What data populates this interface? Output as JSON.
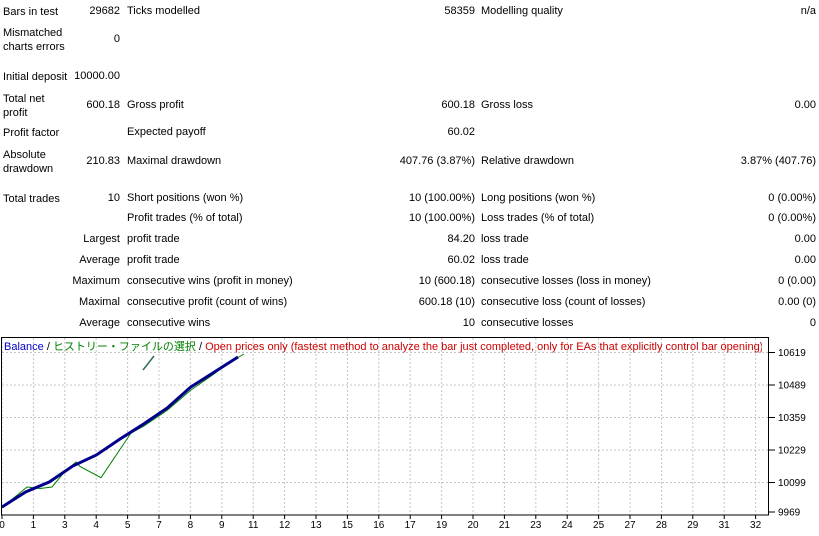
{
  "stats": {
    "rows": [
      {
        "c1": "Bars in test",
        "v1": "29682",
        "c2": "Ticks modelled",
        "v2": "58359",
        "c3": "Modelling quality",
        "v3": "n/a"
      },
      {
        "c1": "Mismatched charts errors",
        "v1": "0",
        "c2": "",
        "v2": "",
        "c3": "",
        "v3": ""
      },
      {
        "c1": "Initial deposit",
        "v1": "10000.00",
        "c2": "",
        "v2": "",
        "c3": "",
        "v3": ""
      },
      {
        "c1": "Total net profit",
        "v1": "600.18",
        "c2": "Gross profit",
        "v2": "600.18",
        "c3": "Gross loss",
        "v3": "0.00"
      },
      {
        "c1": "Profit factor",
        "v1": "",
        "c2": "Expected payoff",
        "v2": "60.02",
        "c3": "",
        "v3": ""
      },
      {
        "c1": "Absolute drawdown",
        "v1": "210.83",
        "c2": "Maximal drawdown",
        "v2": "407.76 (3.87%)",
        "c3": "Relative drawdown",
        "v3": "3.87% (407.76)"
      },
      {
        "c1": "Total trades",
        "v1": "10",
        "c2": "Short positions (won %)",
        "v2": "10 (100.00%)",
        "c3": "Long positions (won %)",
        "v3": "0 (0.00%)"
      },
      {
        "c1": "",
        "v1": "",
        "c2": "Profit trades (% of total)",
        "v2": "10 (100.00%)",
        "c3": "Loss trades (% of total)",
        "v3": "0 (0.00%)"
      },
      {
        "c1": "",
        "v1": "Largest",
        "c2": "profit trade",
        "v2": "84.20",
        "c3": "loss trade",
        "v3": "0.00"
      },
      {
        "c1": "",
        "v1": "Average",
        "c2": "profit trade",
        "v2": "60.02",
        "c3": "loss trade",
        "v3": "0.00"
      },
      {
        "c1": "",
        "v1": "Maximum",
        "c2": "consecutive wins (profit in money)",
        "v2": "10 (600.18)",
        "c3": "consecutive losses (loss in money)",
        "v3": "0 (0.00)"
      },
      {
        "c1": "",
        "v1": "Maximal",
        "c2": "consecutive profit (count of wins)",
        "v2": "600.18 (10)",
        "c3": "consecutive loss (count of losses)",
        "v3": "0.00 (0)"
      },
      {
        "c1": "",
        "v1": "Average",
        "c2": "consecutive wins",
        "v2": "10",
        "c3": "consecutive losses",
        "v3": "0"
      }
    ]
  },
  "chart": {
    "legend": {
      "balance": "Balance",
      "separator": " / ",
      "history": "ヒストリー・ファイルの選択",
      "note": "Open prices only (fastest method to analyze the bar just completed, only for EAs that explicitly control bar opening)"
    },
    "y_axis": {
      "labels": [
        "10619",
        "10489",
        "10359",
        "10229",
        "10099",
        "9969"
      ]
    },
    "x_axis": {
      "labels": [
        "0",
        "1",
        "3",
        "4",
        "5",
        "7",
        "8",
        "9",
        "11",
        "12",
        "13",
        "15",
        "16",
        "17",
        "19",
        "20",
        "21",
        "23",
        "24",
        "25",
        "27",
        "28",
        "29",
        "31",
        "32"
      ]
    },
    "series": {
      "balance": {
        "name": "Balance",
        "color": "#00008b",
        "points": [
          [
            2,
            176
          ],
          [
            25.6,
            161
          ],
          [
            49.2,
            151
          ],
          [
            72.8,
            135
          ],
          [
            96.4,
            124
          ],
          [
            120,
            108
          ],
          [
            143.6,
            93
          ],
          [
            167.2,
            77
          ],
          [
            190.8,
            56
          ],
          [
            214.4,
            41
          ],
          [
            238,
            26
          ]
        ]
      },
      "equity": {
        "name": "Equity",
        "color": "#008000",
        "points": [
          [
            2,
            177
          ],
          [
            10,
            170
          ],
          [
            27,
            156
          ],
          [
            40,
            157.5
          ],
          [
            52,
            156
          ],
          [
            64,
            141.5
          ],
          [
            76,
            131
          ],
          [
            80,
            135.5
          ],
          [
            101,
            146.7
          ],
          [
            131,
            102
          ],
          [
            144,
            95
          ],
          [
            167,
            79.5
          ],
          [
            191,
            59
          ],
          [
            214,
            43
          ],
          [
            226,
            33.5
          ],
          [
            244,
            23
          ]
        ]
      }
    },
    "pointer_mark": {
      "points": [
        [
          143,
          39
        ],
        [
          154,
          25
        ]
      ],
      "color": "#2e6e55"
    },
    "colors": {
      "grid": "#c4c4c4",
      "frame": "#000000",
      "legend_balance": "#0000cc",
      "legend_history": "#008000",
      "legend_note": "#cc0000",
      "axis_text": "#000000"
    }
  }
}
